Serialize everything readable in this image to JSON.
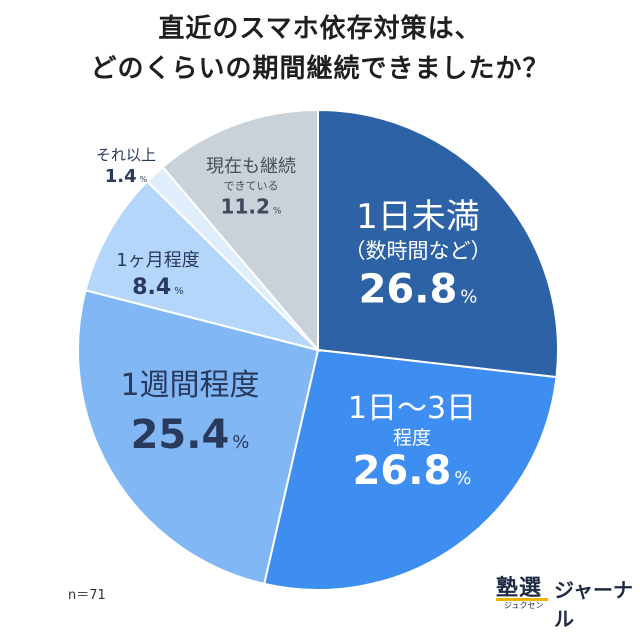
{
  "title_line1": "直近のスマホ依存対策は、",
  "title_line2": "どのくらいの期間継続できましたか？",
  "n_label": "n＝71",
  "logo": {
    "main": "塾選",
    "sub": "ジュクセン",
    "journal": "ジャーナル"
  },
  "chart_data": {
    "type": "pie",
    "title": "直近のスマホ依存対策は、どのくらいの期間継続できましたか？",
    "unit": "%",
    "slices": [
      {
        "label_lines": [
          "1日未満",
          "（数時間など）"
        ],
        "value": 26.8,
        "color": "#2d62a6"
      },
      {
        "label_lines": [
          "1日～3日",
          "程度"
        ],
        "value": 26.8,
        "color": "#3d8ef0"
      },
      {
        "label_lines": [
          "1週間程度"
        ],
        "value": 25.4,
        "color": "#82b7f5"
      },
      {
        "label_lines": [
          "1ヶ月程度"
        ],
        "value": 8.4,
        "color": "#b5d6fb"
      },
      {
        "label_lines": [
          "それ以上"
        ],
        "value": 1.4,
        "color": "#e0eefc"
      },
      {
        "label_lines": [
          "現在も継続",
          "できている"
        ],
        "value": 11.2,
        "color": "#c9d1d9"
      }
    ]
  }
}
